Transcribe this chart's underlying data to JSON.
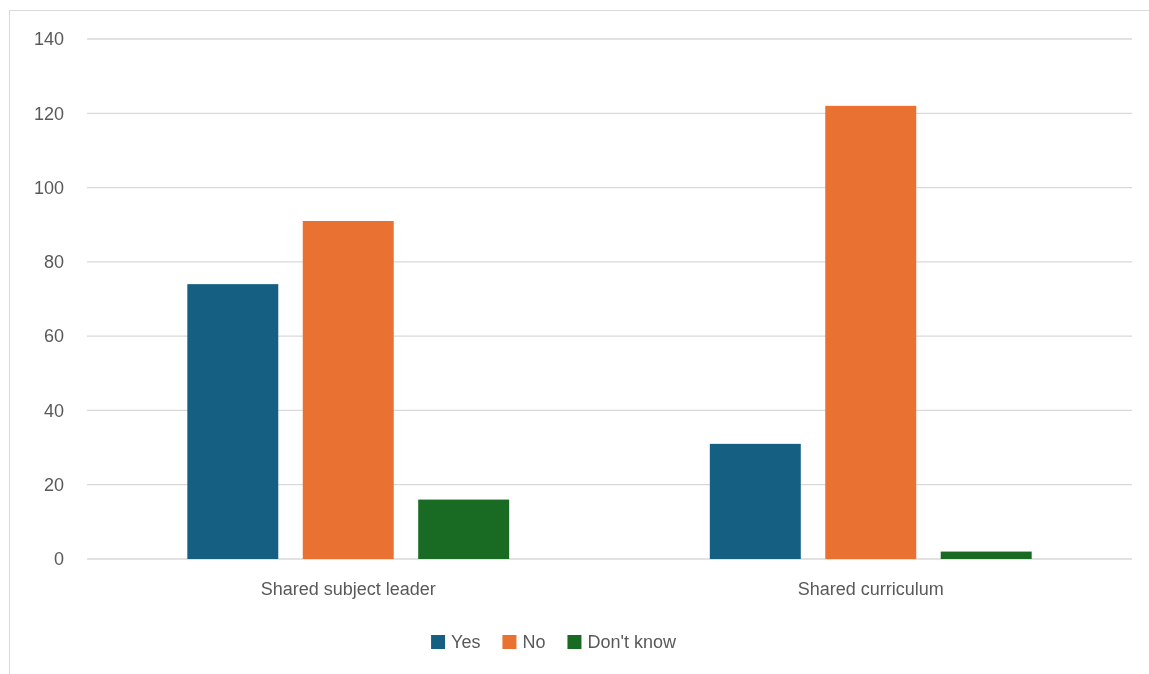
{
  "chart_data": {
    "type": "bar",
    "categories": [
      "Shared subject leader",
      "Shared curriculum"
    ],
    "series": [
      {
        "name": "Yes",
        "color": "#156082",
        "values": [
          74,
          31
        ]
      },
      {
        "name": "No",
        "color": "#e97132",
        "values": [
          91,
          122
        ]
      },
      {
        "name": "Don't know",
        "color": "#196b24",
        "values": [
          16,
          2
        ]
      }
    ],
    "ylim": [
      0,
      140
    ],
    "yticks": [
      0,
      20,
      40,
      60,
      80,
      100,
      120,
      140
    ],
    "grid": "y",
    "legend": "bottom"
  }
}
